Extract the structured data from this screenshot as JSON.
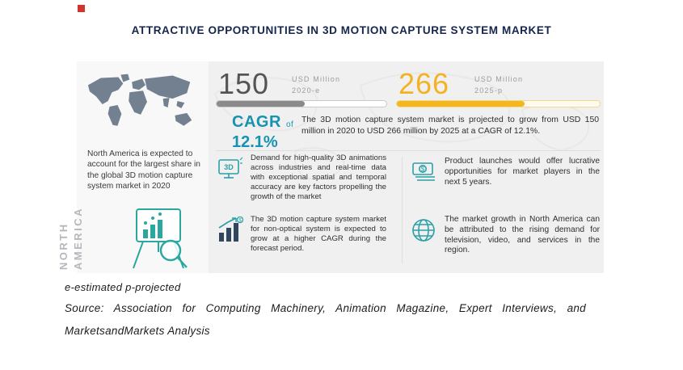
{
  "title": "ATTRACTIVE OPPORTUNITIES IN 3D MOTION CAPTURE SYSTEM MARKET",
  "left_panel": {
    "text": "North America is expected to account for the largest share in the global 3D motion capture system market in 2020",
    "vertical_label": "NORTH\nAMERICA"
  },
  "stat_2020": {
    "value": "150",
    "unit": "USD Million",
    "year": "2020-e",
    "fill_percent": 52
  },
  "stat_2025": {
    "value": "266",
    "unit": "USD Million",
    "year": "2025-p",
    "fill_percent": 63
  },
  "cagr": {
    "label": "CAGR",
    "of": "of",
    "value": "12.1%"
  },
  "projection_text": "The 3D motion capture system market is projected to grow from USD 150 million in 2020 to USD 266 million by 2025 at a CAGR of 12.1%.",
  "bullets": [
    {
      "icon": "3d-animation-quality-icon",
      "text": "Demand for high-quality 3D animations across industries and real-time data with exceptional spatial and temporal accuracy are key factors propelling the growth of the market"
    },
    {
      "icon": "growth-chart-icon",
      "text": "The 3D motion capture system market for non-optical system is expected to grow at a higher CAGR during the forecast period."
    },
    {
      "icon": "money-opportunity-icon",
      "text": "Product launches would offer lucrative opportunities for market players in the next 5 years."
    },
    {
      "icon": "globe-icon",
      "text": "The market growth in North America can be attributed to the rising demand for television, video, and services in the region."
    }
  ],
  "footnotes": {
    "legend": "e-estimated p-projected",
    "source": "Source: Association for Computing Machinery, Animation Magazine, Expert Interviews, and MarketsandMarkets Analysis"
  },
  "colors": {
    "title_navy": "#16254c",
    "accent_teal": "#1693b0",
    "accent_gold": "#f4b223",
    "bar_gray": "#8a8a8a",
    "icon_teal": "#2aa0a8",
    "brand_red": "#d0342c"
  },
  "chart_data": {
    "type": "bar",
    "title": "ATTRACTIVE OPPORTUNITIES IN 3D MOTION CAPTURE SYSTEM MARKET",
    "categories": [
      "2020-e",
      "2025-p"
    ],
    "values": [
      150,
      266
    ],
    "unit": "USD Million",
    "annotations": [
      "CAGR of 12.1%"
    ],
    "legend_position": "none",
    "grid": false
  }
}
